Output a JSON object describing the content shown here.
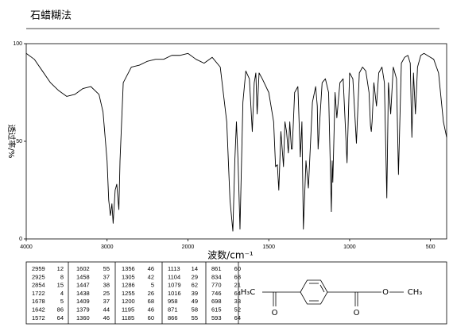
{
  "title": "石蜡糊法",
  "chart_data": {
    "type": "line",
    "xlabel": "波数/cm⁻¹",
    "ylabel": "透过率/%",
    "xlim": [
      4000,
      400
    ],
    "ylim": [
      0,
      100
    ],
    "xticks": [
      4000,
      3000,
      2000,
      1500,
      1000,
      500
    ],
    "yticks": [
      0,
      50,
      100
    ],
    "x": [
      4000,
      3900,
      3800,
      3700,
      3600,
      3500,
      3400,
      3300,
      3200,
      3100,
      3050,
      3000,
      2980,
      2959,
      2940,
      2925,
      2900,
      2880,
      2854,
      2840,
      2800,
      2700,
      2600,
      2500,
      2400,
      2300,
      2200,
      2100,
      2000,
      1950,
      1900,
      1850,
      1800,
      1760,
      1740,
      1722,
      1710,
      1700,
      1690,
      1678,
      1660,
      1642,
      1620,
      1602,
      1590,
      1580,
      1572,
      1560,
      1540,
      1500,
      1470,
      1458,
      1447,
      1438,
      1425,
      1409,
      1400,
      1390,
      1379,
      1370,
      1360,
      1355,
      1340,
      1320,
      1305,
      1295,
      1286,
      1270,
      1255,
      1230,
      1210,
      1200,
      1195,
      1185,
      1170,
      1150,
      1130,
      1113,
      1108,
      1104,
      1090,
      1079,
      1060,
      1040,
      1016,
      1000,
      980,
      958,
      940,
      920,
      900,
      880,
      871,
      866,
      861,
      850,
      834,
      820,
      800,
      785,
      770,
      760,
      746,
      730,
      710,
      698,
      680,
      660,
      640,
      625,
      615,
      605,
      593,
      580,
      560,
      540,
      520,
      500,
      480,
      450,
      420,
      400
    ],
    "series": [
      {
        "color": "#000000",
        "values": [
          95,
          92,
          86,
          80,
          76,
          73,
          74,
          77,
          78,
          74,
          65,
          40,
          20,
          12,
          18,
          8,
          25,
          28,
          15,
          40,
          80,
          88,
          89,
          91,
          92,
          92,
          94,
          94,
          95,
          92,
          90,
          93,
          88,
          60,
          20,
          4,
          40,
          60,
          40,
          5,
          70,
          86,
          82,
          55,
          80,
          85,
          64,
          85,
          82,
          75,
          60,
          37,
          38,
          25,
          55,
          37,
          60,
          55,
          44,
          60,
          46,
          46,
          75,
          78,
          42,
          60,
          5,
          40,
          26,
          70,
          78,
          68,
          46,
          60,
          80,
          82,
          75,
          14,
          40,
          29,
          75,
          62,
          80,
          82,
          39,
          85,
          82,
          49,
          85,
          88,
          86,
          75,
          58,
          55,
          60,
          80,
          68,
          85,
          88,
          80,
          21,
          80,
          64,
          88,
          82,
          33,
          90,
          93,
          94,
          90,
          52,
          85,
          64,
          88,
          94,
          95,
          94,
          93,
          92,
          85,
          60,
          52
        ]
      }
    ]
  },
  "peak_table": {
    "wavenumbers": [
      2959,
      2925,
      2854,
      1722,
      1678,
      1642,
      1572,
      1602,
      1458,
      1447,
      1438,
      1409,
      1379,
      1360,
      1356,
      1305,
      1286,
      1255,
      1200,
      1195,
      1185,
      1113,
      1104,
      1079,
      1016,
      958,
      871,
      866,
      861,
      834,
      770,
      746,
      698,
      615,
      593
    ],
    "transmittance": [
      12,
      8,
      15,
      4,
      5,
      86,
      64,
      55,
      37,
      38,
      25,
      37,
      44,
      46,
      46,
      42,
      5,
      26,
      68,
      46,
      60,
      14,
      29,
      62,
      39,
      49,
      58,
      55,
      60,
      68,
      21,
      64,
      33,
      52,
      64
    ]
  },
  "structure": {
    "left": "H₃C",
    "ketone_o": "O",
    "ester_carbonyl_o": "O",
    "ester_o": "O",
    "right": "CH₃"
  }
}
